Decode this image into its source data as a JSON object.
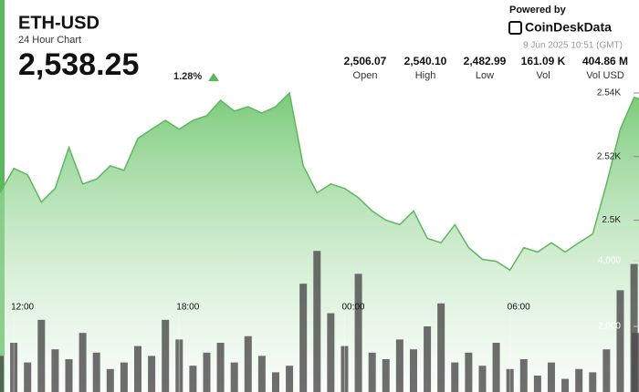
{
  "header": {
    "title": "ETH-USD",
    "subtitle": "24 Hour Chart",
    "price": "2,538.25",
    "change": "1.28%",
    "powered": "Powered by",
    "brand": "CoinDeskData",
    "timestamp": "9 Jun 2025 10:51 (GMT)",
    "stats": [
      {
        "value": "2,506.07",
        "label": "Open"
      },
      {
        "value": "2,540.10",
        "label": "High"
      },
      {
        "value": "2,482.99",
        "label": "Low"
      },
      {
        "value": "161.09 K",
        "label": "Vol"
      },
      {
        "value": "404.86 M",
        "label": "Vol USD"
      }
    ]
  },
  "chart_data": {
    "type": "line",
    "x": [
      11.5,
      12,
      12.5,
      13,
      13.5,
      14,
      14.5,
      15,
      15.5,
      16,
      16.5,
      17,
      17.5,
      18,
      18.5,
      19,
      19.5,
      20,
      20.5,
      21,
      21.5,
      22,
      22.5,
      23,
      23.5,
      24,
      24.5,
      25,
      25.5,
      26,
      26.5,
      27,
      27.5,
      28,
      28.5,
      29,
      29.5,
      30,
      30.5,
      31,
      31.5,
      32,
      32.5,
      33,
      33.5,
      34,
      34.5,
      34.68
    ],
    "xlim": [
      11.5,
      34.68
    ],
    "xticks": [
      {
        "value": 12,
        "label": "12:00"
      },
      {
        "value": 18,
        "label": "18:00"
      },
      {
        "value": 24,
        "label": "00:00"
      },
      {
        "value": 30,
        "label": "06:00"
      }
    ],
    "ylim": [
      2446,
      2542
    ],
    "yticks": [
      {
        "value": 2500,
        "label": "2.5K"
      },
      {
        "value": 2520,
        "label": "2.52K"
      },
      {
        "value": 2540,
        "label": "2.54K"
      }
    ],
    "y2lim": [
      0,
      5000
    ],
    "y2ticks": [
      {
        "value": 2000,
        "label": "2,000"
      },
      {
        "value": 4000,
        "label": "4,000"
      }
    ],
    "series": [
      {
        "type": "area",
        "color": "#5cb85c",
        "values": [
          2508.6,
          2516.3,
          2514.3,
          2505.7,
          2510,
          2522.9,
          2511.4,
          2512.9,
          2517.1,
          2515.7,
          2525.7,
          2528.6,
          2531.4,
          2528.6,
          2531.4,
          2532.9,
          2537.7,
          2534.3,
          2535.7,
          2533.7,
          2535.7,
          2540,
          2517.1,
          2508.6,
          2511.4,
          2510,
          2507.1,
          2502.9,
          2500,
          2498.6,
          2502.9,
          2494.3,
          2492.9,
          2498.6,
          2491.4,
          2487.7,
          2487.1,
          2484.3,
          2491.4,
          2490,
          2492.9,
          2490,
          2492.9,
          2495.7,
          2511.4,
          2528.6,
          2538.6,
          2538.25
        ]
      },
      {
        "type": "bar",
        "axis": "y2",
        "color": "#4a4a4a",
        "values": [
          1100,
          1500,
          900,
          2200,
          1300,
          1000,
          1800,
          1200,
          700,
          900,
          1400,
          1100,
          2200,
          1600,
          800,
          1200,
          1500,
          900,
          1700,
          1100,
          600,
          800,
          3300,
          4300,
          2400,
          1400,
          3600,
          1200,
          1000,
          1600,
          1300,
          2000,
          2700,
          900,
          1200,
          800,
          1500,
          700,
          1000,
          500,
          900,
          400,
          700,
          600,
          1300,
          3100,
          3900,
          1800
        ]
      }
    ]
  }
}
